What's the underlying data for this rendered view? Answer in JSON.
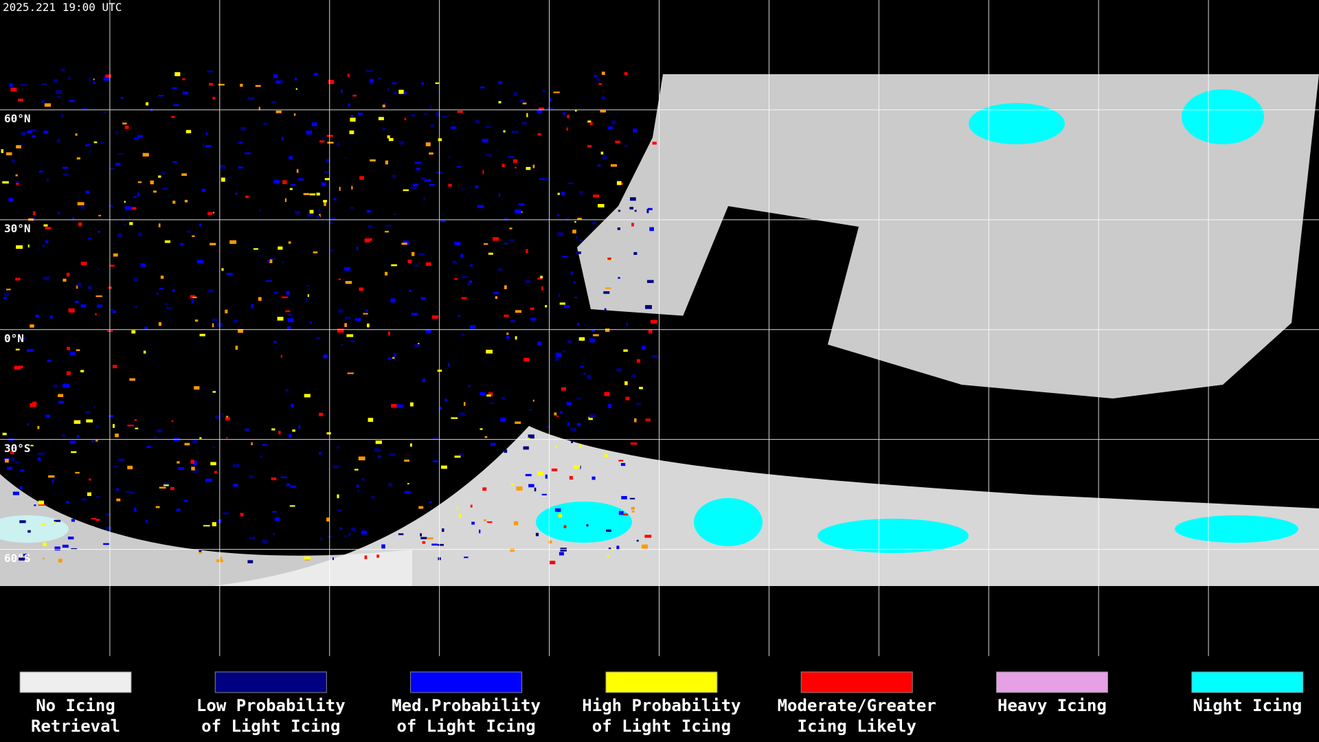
{
  "header": {
    "timestamp": "2025.221 19:00 UTC"
  },
  "map": {
    "latitude_labels": [
      "60°N",
      "30°N",
      "0°N",
      "30°S",
      "60°S"
    ]
  },
  "legend": [
    {
      "lines": [
        "No Icing",
        "Retrieval"
      ],
      "color": "#eeeeee"
    },
    {
      "lines": [
        "Low Probability",
        "of Light Icing"
      ],
      "color": "#000080"
    },
    {
      "lines": [
        "Med.Probability",
        "of Light Icing"
      ],
      "color": "#0000ff"
    },
    {
      "lines": [
        "High Probability",
        "of Light Icing"
      ],
      "color": "#ffff00"
    },
    {
      "lines": [
        "Moderate/Greater",
        "Icing Likely"
      ],
      "color": "#ff0000"
    },
    {
      "lines": [
        "Heavy Icing"
      ],
      "color": "#e6a0e6"
    },
    {
      "lines": [
        "Night Icing"
      ],
      "color": "#00ffff"
    }
  ]
}
